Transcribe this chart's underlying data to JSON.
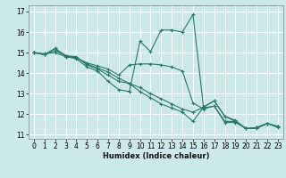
{
  "xlabel": "Humidex (Indice chaleur)",
  "ylabel": "",
  "xlim": [
    -0.5,
    23.5
  ],
  "ylim": [
    10.8,
    17.3
  ],
  "yticks": [
    11,
    12,
    13,
    14,
    15,
    16,
    17
  ],
  "xtick_labels": [
    "0",
    "1",
    "2",
    "3",
    "4",
    "5",
    "6",
    "7",
    "8",
    "9",
    "10",
    "11",
    "12",
    "13",
    "14",
    "15",
    "16",
    "17",
    "18",
    "19",
    "20",
    "21",
    "22",
    "23"
  ],
  "bg_color": "#cde8e8",
  "grid_color": "#ffffff",
  "line_color": "#2a7a6a",
  "lines": [
    [
      0,
      15.0,
      1,
      14.9,
      2,
      15.2,
      3,
      14.8,
      4,
      14.7,
      5,
      14.3,
      6,
      14.1,
      7,
      13.6,
      8,
      13.2,
      9,
      13.1,
      10,
      15.55,
      11,
      15.05,
      12,
      16.1,
      13,
      16.1,
      14,
      16.0,
      15,
      16.85,
      16,
      12.3,
      17,
      12.4,
      18,
      11.6,
      19,
      11.6,
      20,
      11.3,
      21,
      11.3,
      22,
      11.55,
      23,
      11.35
    ],
    [
      0,
      15.0,
      1,
      14.95,
      2,
      15.0,
      3,
      14.8,
      4,
      14.75,
      5,
      14.5,
      6,
      14.35,
      7,
      14.2,
      8,
      13.9,
      9,
      14.4,
      10,
      14.45,
      11,
      14.45,
      12,
      14.4,
      13,
      14.3,
      14,
      14.1,
      15,
      12.55,
      16,
      12.25,
      17,
      12.4,
      18,
      11.65,
      19,
      11.65,
      20,
      11.3,
      21,
      11.35,
      22,
      11.55,
      23,
      11.4
    ],
    [
      0,
      15.0,
      1,
      14.9,
      2,
      15.2,
      3,
      14.85,
      4,
      14.8,
      5,
      14.4,
      6,
      14.2,
      7,
      13.9,
      8,
      13.6,
      9,
      13.5,
      10,
      13.1,
      11,
      12.8,
      12,
      12.5,
      13,
      12.3,
      14,
      12.1,
      15,
      11.65,
      16,
      12.35,
      17,
      12.65,
      18,
      11.9,
      19,
      11.7,
      20,
      11.3,
      21,
      11.35,
      22,
      11.55,
      23,
      11.4
    ],
    [
      0,
      15.0,
      1,
      14.9,
      2,
      15.1,
      3,
      14.85,
      4,
      14.75,
      5,
      14.45,
      6,
      14.25,
      7,
      14.05,
      8,
      13.75,
      9,
      13.5,
      10,
      13.3,
      11,
      13.0,
      12,
      12.75,
      13,
      12.5,
      14,
      12.25,
      15,
      12.1,
      16,
      12.35,
      17,
      12.65,
      18,
      11.9,
      19,
      11.65,
      20,
      11.3,
      21,
      11.35,
      22,
      11.55,
      23,
      11.4
    ]
  ]
}
